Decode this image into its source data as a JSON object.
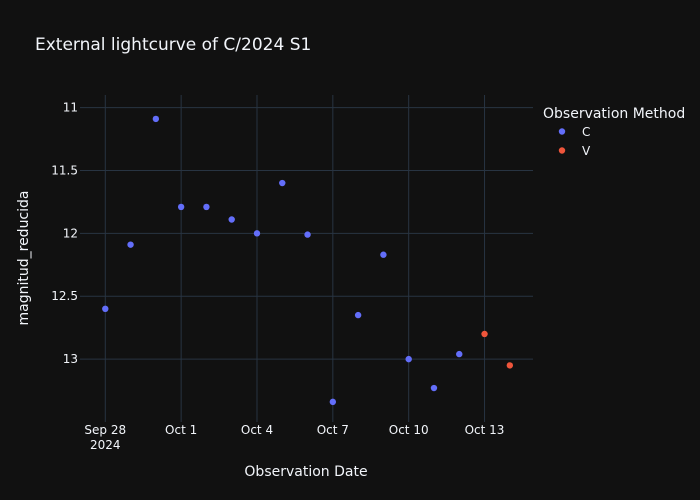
{
  "chart_data": {
    "type": "scatter",
    "title": "External lightcurve of C/2024 S1",
    "xlabel": "Observation Date",
    "ylabel": "magnitud_reducida",
    "x_ticks": [
      {
        "date": "2024-09-28",
        "label": "Sep 28",
        "sublabel": "2024"
      },
      {
        "date": "2024-10-01",
        "label": "Oct 1",
        "sublabel": ""
      },
      {
        "date": "2024-10-04",
        "label": "Oct 4",
        "sublabel": ""
      },
      {
        "date": "2024-10-07",
        "label": "Oct 7",
        "sublabel": ""
      },
      {
        "date": "2024-10-10",
        "label": "Oct 10",
        "sublabel": ""
      },
      {
        "date": "2024-10-13",
        "label": "Oct 13",
        "sublabel": ""
      }
    ],
    "y_ticks": [
      {
        "value": 11,
        "label": "11"
      },
      {
        "value": 11.5,
        "label": "11.5"
      },
      {
        "value": 12,
        "label": "12"
      },
      {
        "value": 12.5,
        "label": "12.5"
      },
      {
        "value": 13,
        "label": "13"
      }
    ],
    "xlim": [
      "2024-09-27T00:00",
      "2024-10-14T22:00"
    ],
    "ylim": [
      13.5,
      10.9
    ],
    "y_reversed": true,
    "grid": true,
    "legend": {
      "title": "Observation Method",
      "position": "top-right"
    },
    "series": [
      {
        "name": "C",
        "color": "#636efa",
        "points": [
          {
            "x": "2024-09-28",
            "y": 12.6
          },
          {
            "x": "2024-09-29",
            "y": 12.09
          },
          {
            "x": "2024-09-30",
            "y": 11.09
          },
          {
            "x": "2024-10-01",
            "y": 11.79
          },
          {
            "x": "2024-10-02",
            "y": 11.79
          },
          {
            "x": "2024-10-03",
            "y": 11.89
          },
          {
            "x": "2024-10-04",
            "y": 12.0
          },
          {
            "x": "2024-10-05",
            "y": 11.6
          },
          {
            "x": "2024-10-06",
            "y": 12.01
          },
          {
            "x": "2024-10-07",
            "y": 13.34
          },
          {
            "x": "2024-10-08",
            "y": 12.65
          },
          {
            "x": "2024-10-09",
            "y": 12.17
          },
          {
            "x": "2024-10-10",
            "y": 13.0
          },
          {
            "x": "2024-10-11",
            "y": 13.23
          },
          {
            "x": "2024-10-12",
            "y": 12.96
          }
        ]
      },
      {
        "name": "V",
        "color": "#ef553b",
        "points": [
          {
            "x": "2024-10-13",
            "y": 12.8
          },
          {
            "x": "2024-10-14",
            "y": 13.05
          }
        ]
      }
    ]
  },
  "colors": {
    "background": "#111111",
    "grid": "#283442",
    "text": "#f2f5fa"
  }
}
